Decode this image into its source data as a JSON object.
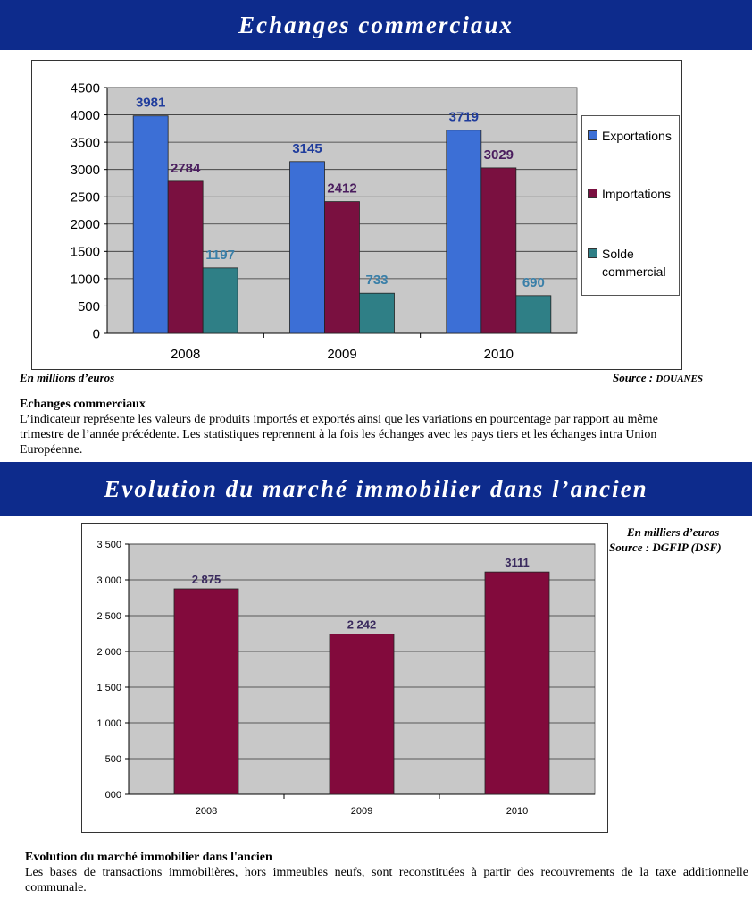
{
  "section1": {
    "banner": "Echanges commerciaux",
    "unit_note": "En millions d’euros",
    "source_prefix": "Source :",
    "source_name": "DOUANES",
    "desc_title": "Echanges commerciaux",
    "desc_text": "L’indicateur représente les valeurs de produits importés et exportés ainsi que les variations en pourcentage par rapport au même trimestre de l’année précédente. Les statistiques reprennent à la fois les échanges avec les pays tiers et les échanges intra Union Européenne."
  },
  "section2": {
    "banner": "Evolution du marché immobilier dans l’ancien",
    "unit_note": "En milliers d’euros",
    "source_note": "Source : DGFIP (DSF)",
    "desc_title": "Evolution du marché immobilier dans l'ancien",
    "desc_text": "Les bases de transactions immobilières, hors immeubles neufs, sont reconstituées à partir des recouvrements de la taxe additionnelle communale."
  },
  "chart_data": [
    {
      "type": "bar",
      "categories": [
        "2008",
        "2009",
        "2010"
      ],
      "series": [
        {
          "name": "Exportations",
          "values": [
            3981,
            3145,
            3719
          ],
          "color": "#3c6fd6",
          "label_color": "#1f3c9c"
        },
        {
          "name": "Importations",
          "values": [
            2784,
            2412,
            3029
          ],
          "color": "#7a1040",
          "label_color": "#4a1d5e"
        },
        {
          "name": "Solde\ncommercial",
          "values": [
            1197,
            733,
            690
          ],
          "color": "#2f7f86",
          "label_color": "#3a7fa8"
        }
      ],
      "ylim": [
        0,
        4500
      ],
      "yticks": [
        "0",
        "500",
        "1000",
        "1500",
        "2000",
        "2500",
        "3000",
        "3500",
        "4000",
        "4500"
      ],
      "grid": true,
      "legend": "right",
      "plot_bg": "#c8c8c8"
    },
    {
      "type": "bar",
      "categories": [
        "2008",
        "2009",
        "2010"
      ],
      "series": [
        {
          "values": [
            2875,
            2242,
            3111
          ],
          "labels": [
            "2 875",
            "2 242",
            "3111"
          ],
          "color": "#820a3c",
          "label_color": "#3a2a5e"
        }
      ],
      "ylim": [
        0,
        3500
      ],
      "yticks": [
        "000",
        "500",
        "1 000",
        "1 500",
        "2 000",
        "2 500",
        "3 000",
        "3 500"
      ],
      "grid": true,
      "plot_bg": "#c8c8c8"
    }
  ]
}
